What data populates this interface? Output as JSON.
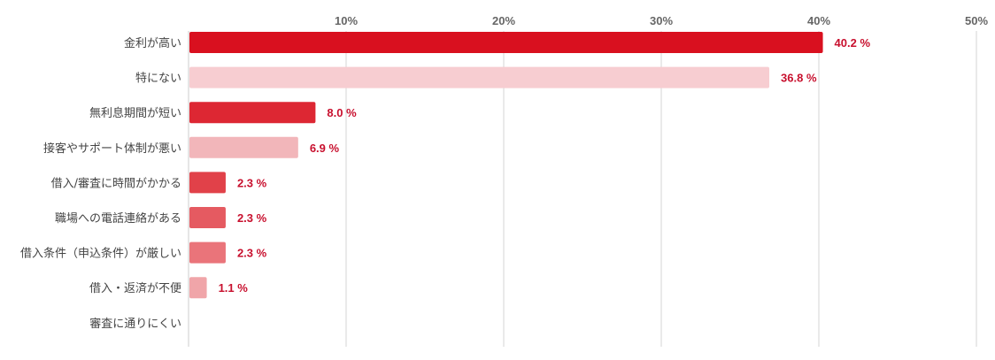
{
  "chart_data": {
    "type": "bar",
    "orientation": "horizontal",
    "categories": [
      "金利が高い",
      "特にない",
      "無利息期間が短い",
      "接客やサポート体制が悪い",
      "借入/審査に時間がかかる",
      "職場への電話連絡がある",
      "借入条件（申込条件）が厳しい",
      "借入・返済が不便",
      "審査に通りにくい"
    ],
    "values": [
      40.2,
      36.8,
      8.0,
      6.9,
      2.3,
      2.3,
      2.3,
      1.1,
      0
    ],
    "value_labels": [
      "40.2 %",
      "36.8 %",
      "8.0 %",
      "6.9 %",
      "2.3 %",
      "2.3 %",
      "2.3 %",
      "1.1 %",
      ""
    ],
    "bar_colors": [
      "#d9101f",
      "#f7cdd1",
      "#dd2733",
      "#f2b6ba",
      "#e14149",
      "#e55a61",
      "#ea747a",
      "#f0a5a9",
      "#f0a5a9"
    ],
    "xlim": [
      0,
      50
    ],
    "xticks": [
      10,
      20,
      30,
      40,
      50
    ],
    "xtick_labels": [
      "10%",
      "20%",
      "30%",
      "40%",
      "50%"
    ],
    "xaxis_position": "top",
    "grid": true,
    "legend": "none",
    "label_color": "#c8102e"
  }
}
